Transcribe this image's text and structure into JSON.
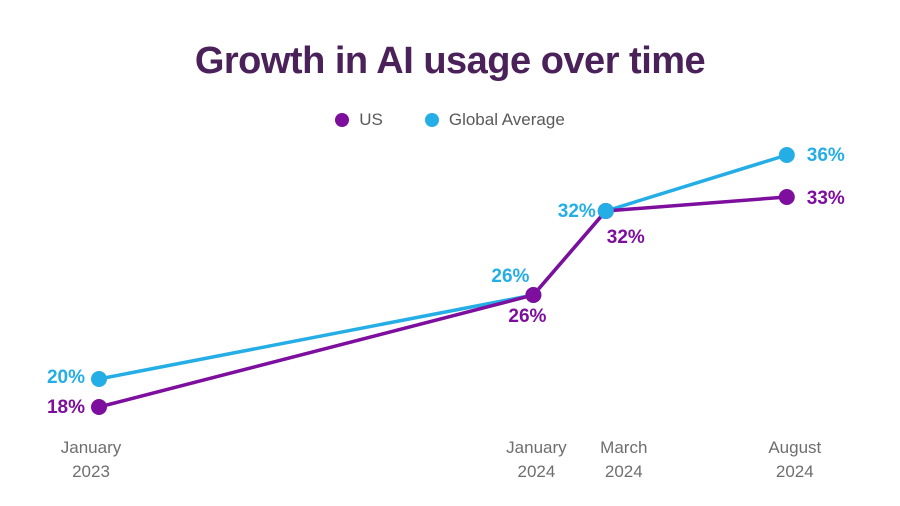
{
  "chart_data": {
    "type": "line",
    "title": "Growth in AI usage over time",
    "categories": [
      "January 2023",
      "January 2024",
      "March 2024",
      "August 2024"
    ],
    "x_months_from_start": [
      0,
      12,
      14,
      19
    ],
    "series": [
      {
        "name": "US",
        "color": "#7D0E9E",
        "values": [
          18,
          26,
          32,
          33
        ]
      },
      {
        "name": "Global Average",
        "color": "#25AEE6",
        "values": [
          20,
          26,
          32,
          36
        ]
      }
    ],
    "value_label_format": "{v}%",
    "ylim": [
      15,
      40
    ],
    "grid": false,
    "legend_position": "top-center",
    "colors": {
      "title": "#4B2159",
      "axis_text": "#6E6E6E",
      "legend_text": "#595959",
      "background": "#FFFFFF"
    }
  }
}
